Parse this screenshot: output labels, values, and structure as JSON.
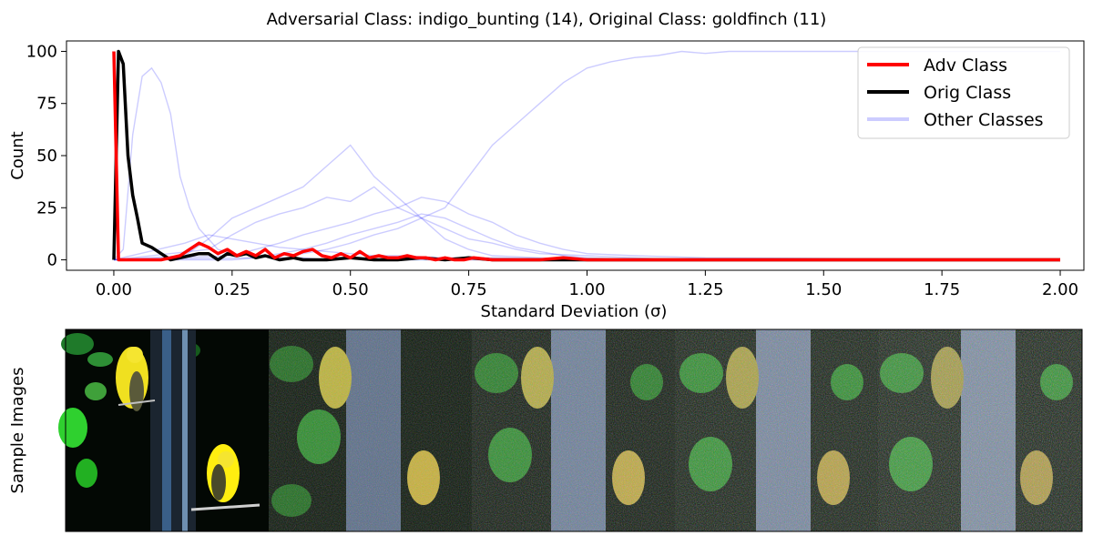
{
  "chart_data": [
    {
      "type": "line",
      "title": "Adversarial Class: indigo_bunting (14), Original Class: goldfinch (11)",
      "xlabel": "Standard Deviation (σ)",
      "ylabel": "Count",
      "xlim": [
        -0.1,
        2.05
      ],
      "ylim": [
        -5,
        105
      ],
      "xticks": [
        "0.00",
        "0.25",
        "0.50",
        "0.75",
        "1.00",
        "1.25",
        "1.50",
        "1.75",
        "2.00"
      ],
      "yticks": [
        "0",
        "25",
        "50",
        "75",
        "100"
      ],
      "grid": false,
      "legend_position": "top-right",
      "legend": [
        "Adv Class",
        "Orig Class",
        "Other Classes"
      ],
      "colors": {
        "adv": "#ff0000",
        "orig": "#000000",
        "other": "#0000ff"
      },
      "series": [
        {
          "name": "Adv Class",
          "x": [
            0.0,
            0.01,
            0.02,
            0.04,
            0.06,
            0.08,
            0.1,
            0.12,
            0.14,
            0.16,
            0.18,
            0.2,
            0.22,
            0.24,
            0.26,
            0.28,
            0.3,
            0.32,
            0.34,
            0.36,
            0.38,
            0.4,
            0.42,
            0.44,
            0.46,
            0.48,
            0.5,
            0.52,
            0.54,
            0.56,
            0.58,
            0.6,
            0.62,
            0.64,
            0.66,
            0.68,
            0.7,
            0.72,
            0.74,
            0.76,
            0.8,
            0.85,
            0.9,
            0.95,
            1.0,
            1.1,
            1.25,
            1.5,
            1.75,
            2.0
          ],
          "values": [
            100,
            0,
            0,
            0,
            0,
            0,
            0,
            1,
            2,
            5,
            8,
            6,
            3,
            5,
            2,
            4,
            2,
            5,
            1,
            3,
            2,
            4,
            5,
            2,
            1,
            3,
            1,
            4,
            1,
            2,
            1,
            1,
            2,
            1,
            1,
            0,
            1,
            0,
            0,
            1,
            0,
            0,
            0,
            1,
            0,
            0,
            0,
            0,
            0,
            0
          ]
        },
        {
          "name": "Orig Class",
          "x": [
            0.0,
            0.01,
            0.02,
            0.03,
            0.04,
            0.05,
            0.06,
            0.08,
            0.1,
            0.12,
            0.14,
            0.16,
            0.18,
            0.2,
            0.22,
            0.24,
            0.26,
            0.28,
            0.3,
            0.32,
            0.35,
            0.38,
            0.4,
            0.45,
            0.5,
            0.55,
            0.6,
            0.65,
            0.7,
            0.75,
            0.8,
            1.0,
            1.5,
            2.0
          ],
          "values": [
            0,
            100,
            94,
            50,
            31,
            20,
            8,
            6,
            3,
            0,
            1,
            2,
            3,
            3,
            0,
            3,
            2,
            3,
            1,
            2,
            0,
            1,
            0,
            0,
            1,
            0,
            0,
            1,
            0,
            1,
            0,
            0,
            0,
            0
          ]
        },
        {
          "name": "Other Classes",
          "lines": [
            {
              "x": [
                0.0,
                0.02,
                0.04,
                0.06,
                0.08,
                0.1,
                0.12,
                0.14,
                0.16,
                0.18,
                0.2,
                0.22,
                0.25,
                0.3,
                0.35,
                0.4,
                0.45,
                0.5,
                0.55,
                0.6,
                0.7,
                0.8,
                1.0,
                1.2,
                1.4,
                1.6,
                2.0
              ],
              "values": [
                0,
                5,
                60,
                88,
                92,
                85,
                70,
                40,
                25,
                15,
                10,
                5,
                3,
                2,
                1,
                1,
                0,
                1,
                0,
                0,
                0,
                0,
                0,
                0,
                0,
                0,
                0
              ]
            },
            {
              "x": [
                0.0,
                0.1,
                0.15,
                0.2,
                0.25,
                0.3,
                0.35,
                0.4,
                0.45,
                0.5,
                0.55,
                0.6,
                0.65,
                0.7,
                0.75,
                0.8,
                0.85,
                0.9,
                0.95,
                1.0,
                1.05,
                1.1,
                1.15,
                1.2,
                1.25,
                1.3,
                1.4,
                1.5,
                1.6,
                1.7,
                1.8,
                2.0
              ],
              "values": [
                0,
                0,
                0,
                0,
                0,
                1,
                2,
                3,
                5,
                8,
                12,
                15,
                20,
                25,
                40,
                55,
                65,
                75,
                85,
                92,
                95,
                97,
                98,
                100,
                99,
                100,
                100,
                100,
                100,
                100,
                100,
                100
              ]
            },
            {
              "x": [
                0.0,
                0.15,
                0.2,
                0.25,
                0.3,
                0.35,
                0.4,
                0.45,
                0.5,
                0.55,
                0.6,
                0.65,
                0.7,
                0.75,
                0.8,
                0.9,
                1.0,
                1.1,
                1.2,
                2.0
              ],
              "values": [
                0,
                2,
                10,
                20,
                25,
                30,
                35,
                45,
                55,
                40,
                30,
                20,
                10,
                5,
                2,
                1,
                0,
                0,
                0,
                0
              ]
            },
            {
              "x": [
                0.0,
                0.2,
                0.25,
                0.3,
                0.35,
                0.4,
                0.45,
                0.5,
                0.55,
                0.6,
                0.65,
                0.7,
                0.75,
                0.8,
                0.85,
                0.9,
                1.0,
                1.1,
                1.2,
                2.0
              ],
              "values": [
                0,
                5,
                12,
                18,
                22,
                25,
                30,
                28,
                35,
                25,
                20,
                15,
                10,
                8,
                5,
                3,
                2,
                1,
                0,
                0
              ]
            },
            {
              "x": [
                0.0,
                0.25,
                0.3,
                0.35,
                0.4,
                0.45,
                0.5,
                0.55,
                0.6,
                0.65,
                0.7,
                0.75,
                0.8,
                0.85,
                0.9,
                0.95,
                1.0,
                1.1,
                1.25,
                2.0
              ],
              "values": [
                0,
                2,
                5,
                8,
                12,
                15,
                18,
                22,
                25,
                30,
                28,
                22,
                18,
                12,
                8,
                5,
                3,
                2,
                1,
                0
              ]
            },
            {
              "x": [
                0.0,
                0.3,
                0.35,
                0.4,
                0.45,
                0.5,
                0.55,
                0.6,
                0.65,
                0.7,
                0.75,
                0.8,
                0.85,
                0.9,
                0.95,
                1.0,
                1.1,
                1.2,
                2.0
              ],
              "values": [
                0,
                1,
                3,
                5,
                8,
                12,
                15,
                18,
                22,
                20,
                15,
                10,
                6,
                4,
                2,
                1,
                0,
                0,
                0
              ]
            },
            {
              "x": [
                0.0,
                0.15,
                0.2,
                0.25,
                0.3,
                0.35,
                0.4,
                0.45,
                0.5,
                0.55,
                0.6,
                0.7,
                0.8,
                1.0,
                2.0
              ],
              "values": [
                0,
                8,
                12,
                10,
                8,
                6,
                5,
                4,
                3,
                2,
                2,
                1,
                1,
                0,
                0
              ]
            }
          ]
        }
      ]
    },
    {
      "type": "image",
      "ylabel": "Sample Images",
      "panels": 5
    }
  ]
}
